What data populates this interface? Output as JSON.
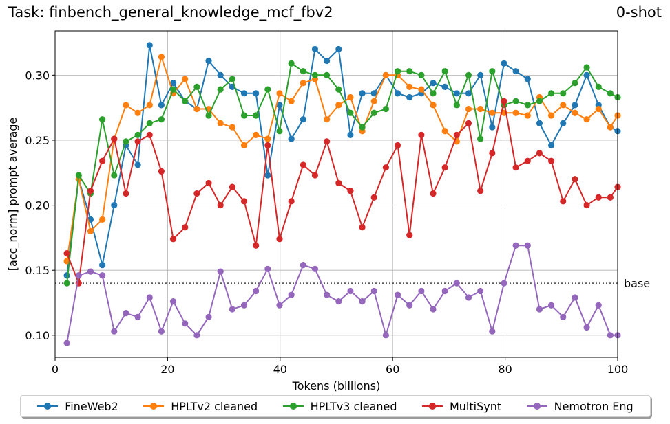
{
  "header": {
    "task_title": "Task: finbench_general_knowledge_mcf_fbv2",
    "shot_label": "0-shot"
  },
  "chart_data": {
    "type": "line",
    "xlabel": "Tokens (billions)",
    "ylabel": "[acc_norm] prompt average",
    "xlim": [
      0,
      100
    ],
    "ylim": [
      0.083,
      0.334
    ],
    "xticks": [
      0,
      20,
      40,
      60,
      80,
      100
    ],
    "yticks": [
      0.1,
      0.15,
      0.2,
      0.25,
      0.3
    ],
    "grid": true,
    "legend_position": "bottom",
    "baseline": {
      "label": "base",
      "value": 0.14
    },
    "x": [
      2.1,
      4.2,
      6.3,
      8.4,
      10.5,
      12.6,
      14.7,
      16.8,
      18.9,
      21.0,
      23.1,
      25.2,
      27.3,
      29.4,
      31.5,
      33.6,
      35.7,
      37.8,
      39.9,
      42.0,
      44.1,
      46.2,
      48.3,
      50.4,
      52.5,
      54.6,
      56.7,
      58.8,
      60.9,
      63.0,
      65.1,
      67.2,
      69.3,
      71.4,
      73.5,
      75.6,
      77.7,
      79.8,
      81.9,
      84.0,
      86.1,
      88.2,
      90.3,
      92.4,
      94.5,
      96.6,
      98.7,
      100.0
    ],
    "series": [
      {
        "name": "FineWeb2",
        "color": "#1f77b4",
        "values": [
          0.146,
          0.22,
          0.189,
          0.154,
          0.2,
          0.246,
          0.231,
          0.323,
          0.277,
          0.294,
          0.28,
          0.274,
          0.311,
          0.3,
          0.291,
          0.286,
          0.286,
          0.223,
          0.277,
          0.251,
          0.266,
          0.32,
          0.311,
          0.32,
          0.254,
          0.286,
          0.286,
          0.3,
          0.286,
          0.283,
          0.286,
          0.294,
          0.291,
          0.286,
          0.286,
          0.3,
          0.26,
          0.309,
          0.303,
          0.297,
          0.263,
          0.246,
          0.263,
          0.277,
          0.3,
          0.277,
          0.26,
          0.257
        ]
      },
      {
        "name": "HPLTv2 cleaned",
        "color": "#ff7f0e",
        "values": [
          0.157,
          0.22,
          0.18,
          0.189,
          0.251,
          0.277,
          0.271,
          0.277,
          0.314,
          0.286,
          0.297,
          0.274,
          0.274,
          0.263,
          0.26,
          0.246,
          0.254,
          0.251,
          0.286,
          0.28,
          0.294,
          0.297,
          0.266,
          0.277,
          0.283,
          0.257,
          0.28,
          0.3,
          0.3,
          0.291,
          0.289,
          0.277,
          0.257,
          0.249,
          0.274,
          0.274,
          0.271,
          0.271,
          0.271,
          0.269,
          0.283,
          0.269,
          0.277,
          0.271,
          0.266,
          0.274,
          0.26,
          0.269
        ]
      },
      {
        "name": "HPLTv3 cleaned",
        "color": "#2ca02c",
        "values": [
          0.14,
          0.223,
          0.209,
          0.266,
          0.223,
          0.249,
          0.254,
          0.263,
          0.266,
          0.289,
          0.28,
          0.291,
          0.269,
          0.289,
          0.297,
          0.269,
          0.269,
          0.289,
          0.257,
          0.309,
          0.303,
          0.3,
          0.3,
          0.289,
          0.271,
          0.26,
          0.271,
          0.274,
          0.303,
          0.303,
          0.3,
          0.286,
          0.303,
          0.277,
          0.3,
          0.251,
          0.303,
          0.277,
          0.28,
          0.277,
          0.28,
          0.286,
          0.286,
          0.294,
          0.306,
          0.291,
          0.286,
          0.283
        ]
      },
      {
        "name": "MultiSynt",
        "color": "#d62728",
        "values": [
          0.163,
          0.14,
          0.211,
          0.234,
          0.251,
          0.209,
          0.249,
          0.254,
          0.226,
          0.174,
          0.183,
          0.209,
          0.217,
          0.2,
          0.214,
          0.203,
          0.169,
          0.246,
          0.174,
          0.203,
          0.231,
          0.223,
          0.249,
          0.217,
          0.211,
          0.183,
          0.206,
          0.229,
          0.246,
          0.177,
          0.254,
          0.209,
          0.229,
          0.254,
          0.263,
          0.211,
          0.24,
          0.28,
          0.229,
          0.234,
          0.24,
          0.234,
          0.203,
          0.22,
          0.2,
          0.206,
          0.206,
          0.214
        ]
      },
      {
        "name": "Nemotron Eng",
        "color": "#9467bd",
        "values": [
          0.094,
          0.146,
          0.149,
          0.146,
          0.103,
          0.117,
          0.114,
          0.129,
          0.103,
          0.126,
          0.109,
          0.1,
          0.114,
          0.149,
          0.12,
          0.123,
          0.134,
          0.151,
          0.123,
          0.131,
          0.154,
          0.151,
          0.131,
          0.126,
          0.134,
          0.126,
          0.134,
          0.1,
          0.131,
          0.123,
          0.134,
          0.12,
          0.134,
          0.14,
          0.129,
          0.134,
          0.103,
          0.14,
          0.169,
          0.169,
          0.12,
          0.123,
          0.114,
          0.129,
          0.106,
          0.123,
          0.1,
          0.1
        ]
      }
    ]
  }
}
